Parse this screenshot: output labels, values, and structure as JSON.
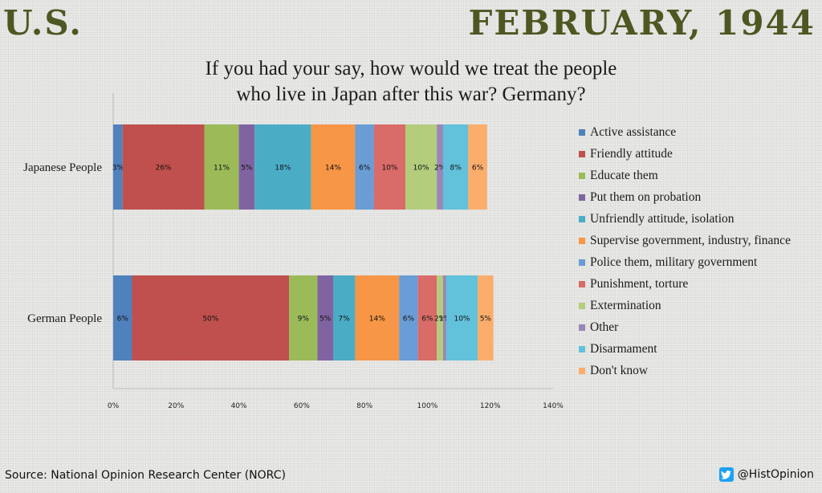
{
  "header": {
    "left": "U.S.",
    "right": "FEBRUARY, 1944"
  },
  "footer": {
    "source": "Source: National Opinion Research Center (NORC)",
    "handle": "@HistOpinion"
  },
  "icons": {
    "social": "twitter-bird-icon"
  },
  "chart_data": {
    "type": "bar",
    "orientation": "horizontal",
    "stacked": true,
    "title_lines": [
      "If you had your say, how would we treat the people",
      "who live in Japan after this war? Germany?"
    ],
    "categories": [
      "Japanese People",
      "German People"
    ],
    "series": [
      {
        "name": "Active assistance",
        "color": "#4f81bd",
        "values": [
          3,
          6
        ]
      },
      {
        "name": "Friendly attitude",
        "color": "#c0504d",
        "values": [
          26,
          50
        ]
      },
      {
        "name": "Educate them",
        "color": "#9bbb59",
        "values": [
          11,
          9
        ]
      },
      {
        "name": "Put them on probation",
        "color": "#8064a2",
        "values": [
          5,
          5
        ]
      },
      {
        "name": "Unfriendly attitude, isolation",
        "color": "#4bacc6",
        "values": [
          18,
          7
        ]
      },
      {
        "name": "Supervise government, industry, finance",
        "color": "#f79646",
        "values": [
          14,
          14
        ]
      },
      {
        "name": "Police them, military government",
        "color": "#6a9cd6",
        "values": [
          6,
          6
        ]
      },
      {
        "name": "Punishment, torture",
        "color": "#d96b68",
        "values": [
          10,
          6
        ]
      },
      {
        "name": "Extermination",
        "color": "#b3cd7c",
        "values": [
          10,
          2
        ]
      },
      {
        "name": "Other",
        "color": "#9b86b8",
        "values": [
          2,
          1
        ]
      },
      {
        "name": "Disarmament",
        "color": "#62c1db",
        "values": [
          8,
          10
        ]
      },
      {
        "name": "Don't know",
        "color": "#fbad6c",
        "values": [
          6,
          5
        ]
      }
    ],
    "xlim": [
      0,
      140
    ],
    "x_ticks": [
      "0%",
      "20%",
      "40%",
      "60%",
      "80%",
      "100%",
      "120%",
      "140%"
    ],
    "grid": false,
    "legend_position": "right"
  }
}
